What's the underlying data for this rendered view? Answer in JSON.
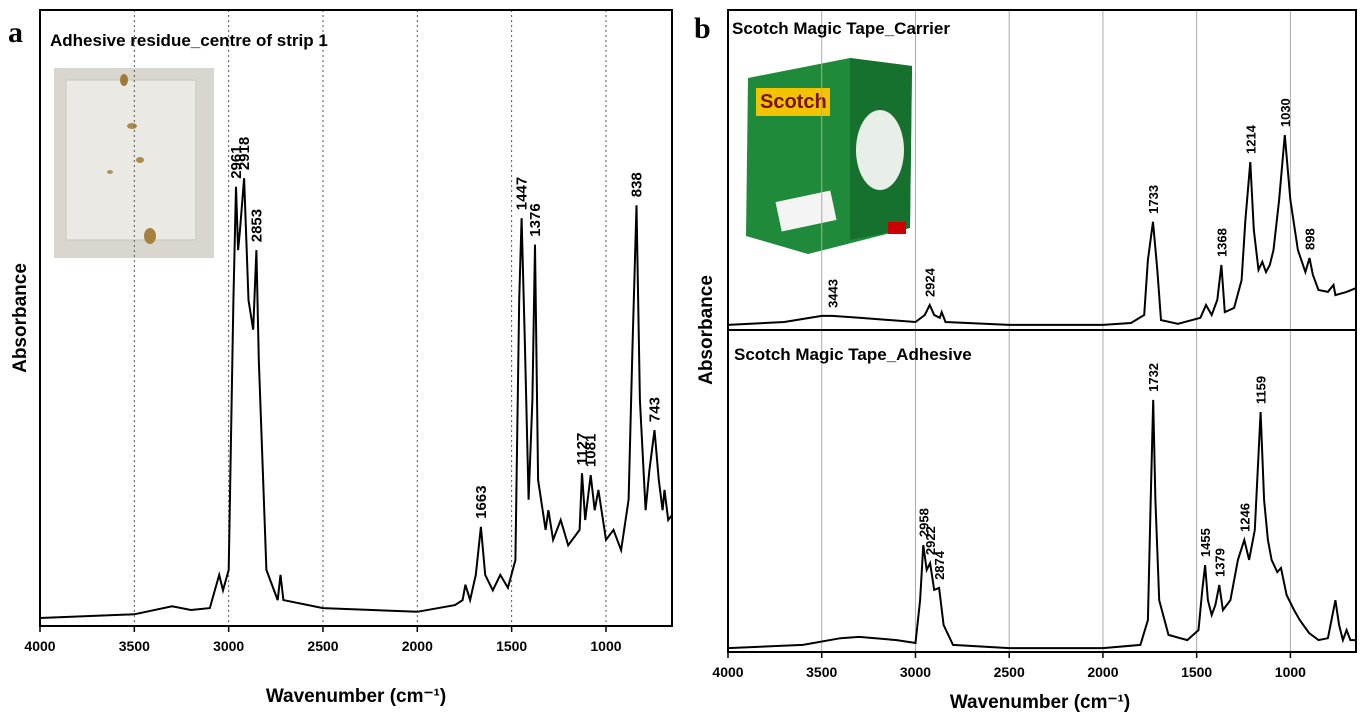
{
  "chart_data": [
    {
      "type": "line",
      "panel": "a",
      "title": "Adhesive residue_centre of strip 1",
      "xlabel": "Wavenumber (cm⁻¹)",
      "ylabel": "Absorbance",
      "xlim": [
        4000,
        650
      ],
      "ylim": [
        0,
        1
      ],
      "xticks": [
        4000,
        3500,
        3000,
        2500,
        2000,
        1500,
        1000
      ],
      "grid": "dotted",
      "color": "#000000",
      "x": [
        4000,
        3500,
        3300,
        3200,
        3100,
        3050,
        3030,
        3000,
        2975,
        2961,
        2950,
        2940,
        2918,
        2895,
        2870,
        2853,
        2840,
        2800,
        2740,
        2725,
        2710,
        2500,
        2000,
        1800,
        1760,
        1745,
        1720,
        1690,
        1663,
        1640,
        1600,
        1560,
        1520,
        1480,
        1460,
        1447,
        1430,
        1410,
        1390,
        1376,
        1360,
        1320,
        1305,
        1280,
        1240,
        1200,
        1140,
        1127,
        1110,
        1081,
        1060,
        1040,
        1000,
        960,
        920,
        880,
        860,
        838,
        820,
        790,
        770,
        743,
        720,
        700,
        690,
        670,
        650
      ],
      "values": [
        0.013,
        0.019,
        0.032,
        0.026,
        0.029,
        0.083,
        0.058,
        0.091,
        0.529,
        0.713,
        0.61,
        0.643,
        0.727,
        0.529,
        0.481,
        0.61,
        0.432,
        0.091,
        0.042,
        0.083,
        0.042,
        0.029,
        0.023,
        0.034,
        0.042,
        0.067,
        0.042,
        0.083,
        0.161,
        0.083,
        0.058,
        0.083,
        0.062,
        0.107,
        0.529,
        0.662,
        0.464,
        0.205,
        0.367,
        0.619,
        0.237,
        0.156,
        0.188,
        0.14,
        0.172,
        0.131,
        0.156,
        0.248,
        0.172,
        0.245,
        0.188,
        0.221,
        0.14,
        0.156,
        0.123,
        0.205,
        0.448,
        0.683,
        0.367,
        0.188,
        0.253,
        0.318,
        0.237,
        0.188,
        0.221,
        0.172,
        0.18
      ],
      "peaks": [
        2961,
        2918,
        2853,
        1663,
        1447,
        1376,
        1127,
        1081,
        838,
        743
      ]
    },
    {
      "type": "line",
      "panel": "b",
      "title": "Scotch Magic Tape_Carrier",
      "ylabel": "Absorbance",
      "xlim": [
        4000,
        650
      ],
      "ylim": [
        0,
        1
      ],
      "grid": "solid",
      "color": "#000000",
      "x": [
        4000,
        3700,
        3500,
        3443,
        3300,
        3000,
        2950,
        2924,
        2900,
        2870,
        2860,
        2840,
        2500,
        2000,
        1850,
        1780,
        1760,
        1733,
        1710,
        1690,
        1600,
        1480,
        1450,
        1420,
        1390,
        1368,
        1350,
        1300,
        1260,
        1240,
        1214,
        1195,
        1170,
        1150,
        1130,
        1110,
        1090,
        1060,
        1030,
        1000,
        960,
        920,
        898,
        880,
        850,
        800,
        770,
        760,
        700,
        650
      ],
      "values": [
        0.016,
        0.025,
        0.044,
        0.044,
        0.038,
        0.025,
        0.047,
        0.078,
        0.047,
        0.038,
        0.056,
        0.025,
        0.016,
        0.016,
        0.022,
        0.047,
        0.219,
        0.338,
        0.188,
        0.031,
        0.019,
        0.038,
        0.078,
        0.047,
        0.094,
        0.203,
        0.056,
        0.069,
        0.156,
        0.344,
        0.525,
        0.313,
        0.188,
        0.213,
        0.181,
        0.203,
        0.25,
        0.406,
        0.609,
        0.406,
        0.25,
        0.181,
        0.225,
        0.172,
        0.125,
        0.119,
        0.141,
        0.109,
        0.119,
        0.131
      ],
      "peaks": [
        3443,
        2924,
        1733,
        1368,
        1214,
        1030,
        898
      ]
    },
    {
      "type": "line",
      "title": "Scotch Magic Tape_Adhesive",
      "xlabel": "Wavenumber (cm⁻¹)",
      "xlim": [
        4000,
        650
      ],
      "ylim": [
        0,
        1
      ],
      "xticks": [
        4000,
        3500,
        3000,
        2500,
        2000,
        1500,
        1000
      ],
      "grid": "solid",
      "color": "#000000",
      "x": [
        4000,
        3600,
        3400,
        3300,
        3100,
        3000,
        2975,
        2958,
        2940,
        2922,
        2900,
        2874,
        2850,
        2800,
        2500,
        2000,
        1800,
        1760,
        1745,
        1732,
        1720,
        1700,
        1650,
        1550,
        1490,
        1470,
        1455,
        1440,
        1420,
        1400,
        1379,
        1360,
        1320,
        1280,
        1246,
        1220,
        1190,
        1159,
        1140,
        1120,
        1100,
        1070,
        1050,
        1020,
        980,
        950,
        900,
        850,
        800,
        760,
        740,
        720,
        700,
        680,
        650
      ],
      "values": [
        0.012,
        0.022,
        0.043,
        0.047,
        0.037,
        0.028,
        0.161,
        0.332,
        0.255,
        0.276,
        0.193,
        0.199,
        0.084,
        0.022,
        0.012,
        0.012,
        0.022,
        0.099,
        0.472,
        0.783,
        0.472,
        0.161,
        0.053,
        0.037,
        0.068,
        0.193,
        0.27,
        0.161,
        0.115,
        0.146,
        0.208,
        0.13,
        0.161,
        0.286,
        0.348,
        0.286,
        0.379,
        0.745,
        0.472,
        0.348,
        0.286,
        0.248,
        0.261,
        0.177,
        0.13,
        0.099,
        0.059,
        0.037,
        0.043,
        0.161,
        0.084,
        0.037,
        0.068,
        0.037,
        0.037
      ],
      "peaks": [
        2958,
        2922,
        2874,
        1732,
        1455,
        1379,
        1246,
        1159
      ]
    }
  ]
}
